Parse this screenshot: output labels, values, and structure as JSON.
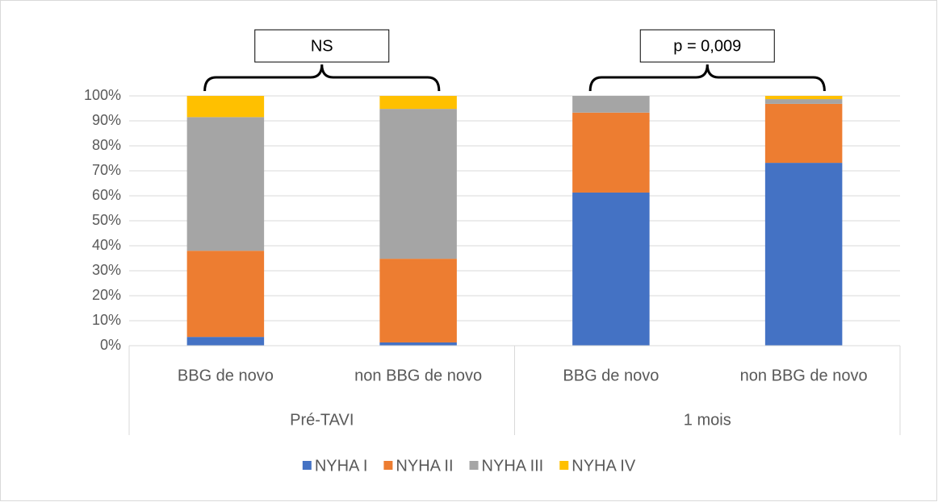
{
  "chart_data": {
    "type": "stacked_bar",
    "categories": [
      "BBG de novo",
      "non BBG de novo",
      "BBG de novo",
      "non BBG de novo"
    ],
    "groups": [
      "Pré-TAVI",
      "1 mois"
    ],
    "annotations": [
      "NS",
      "p = 0,009"
    ],
    "series": [
      {
        "name": "NYHA I",
        "color": "#4472c4",
        "values": [
          3.5,
          1.3,
          61.3,
          73.2
        ]
      },
      {
        "name": "NYHA II",
        "color": "#ed7d31",
        "values": [
          34.5,
          33.5,
          32,
          23.6
        ]
      },
      {
        "name": "NYHA III",
        "color": "#a5a5a5",
        "values": [
          53.5,
          60,
          6.7,
          1.9
        ]
      },
      {
        "name": "NYHA IV",
        "color": "#ffc000",
        "values": [
          8.5,
          5.2,
          0,
          1.3
        ]
      }
    ],
    "ylim": [
      0,
      100
    ],
    "yticks": [
      {
        "value": 0,
        "label": "0%"
      },
      {
        "value": 10,
        "label": "10%"
      },
      {
        "value": 20,
        "label": "20%"
      },
      {
        "value": 30,
        "label": "30%"
      },
      {
        "value": 40,
        "label": "40%"
      },
      {
        "value": 50,
        "label": "50%"
      },
      {
        "value": 60,
        "label": "60%"
      },
      {
        "value": 70,
        "label": "70%"
      },
      {
        "value": 80,
        "label": "80%"
      },
      {
        "value": 90,
        "label": "90%"
      },
      {
        "value": 100,
        "label": "100%"
      }
    ],
    "grid": true,
    "legend": "bottom"
  }
}
